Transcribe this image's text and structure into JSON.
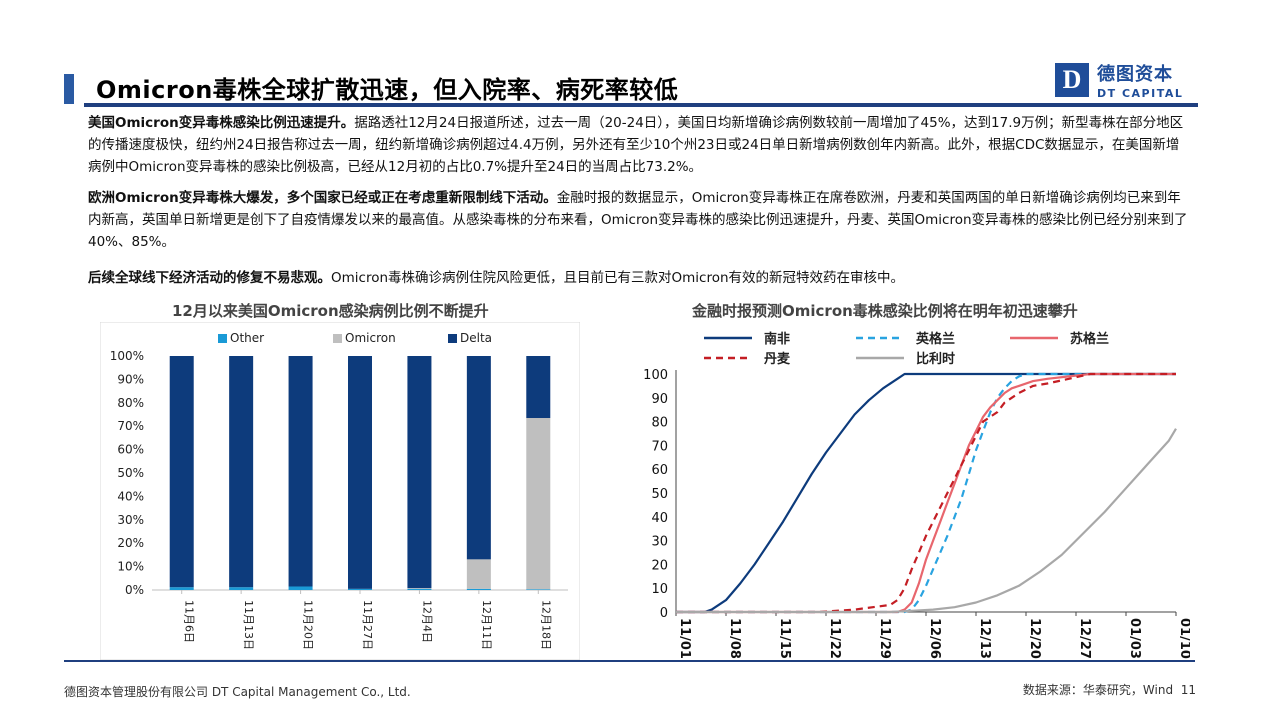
{
  "header": {
    "title": "Omicron毒株全球扩散迅速，但入院率、病死率较低",
    "logo_mark": "D",
    "logo_cn": "德图资本",
    "logo_en": "DT CAPITAL"
  },
  "paragraphs": [
    {
      "lead": "美国Omicron变异毒株感染比例迅速提升。",
      "text": "据路透社12月24日报道所述，过去一周（20-24日），美国日均新增确诊病例数较前一周增加了45%，达到17.9万例；新型毒株在部分地区的传播速度极快，纽约州24日报告称过去一周，纽约新增确诊病例超过4.4万例，另外还有至少10个州23日或24日单日新增病例数创年内新高。此外，根据CDC数据显示，在美国新增病例中Omicron变异毒株的感染比例极高，已经从12月初的占比0.7%提升至24日的当周占比73.2%。"
    },
    {
      "lead": "欧洲Omicron变异毒株大爆发，多个国家已经或正在考虑重新限制线下活动。",
      "text": "金融时报的数据显示，Omicron变异毒株正在席卷欧洲，丹麦和英国两国的单日新增确诊病例均已来到年内新高，英国单日新增更是创下了自疫情爆发以来的最高值。从感染毒株的分布来看，Omicron变异毒株的感染比例迅速提升，丹麦、英国Omicron变异毒株的感染比例已经分别来到了40%、85%。"
    },
    {
      "lead": "后续全球线下经济活动的修复不易悲观。",
      "text": "Omicron毒株确诊病例住院风险更低，且目前已有三款对Omicron有效的新冠特效药在审核中。"
    }
  ],
  "footer": {
    "company": "德图资本管理股份有限公司  DT Capital Management  Co., Ltd.",
    "source": "数据来源：华泰研究，Wind",
    "page": "11"
  },
  "chart_data": [
    {
      "type": "bar",
      "stacked": true,
      "title": "12月以来美国Omicron感染病例比例不断提升",
      "categories": [
        "11月6日",
        "11月13日",
        "11月20日",
        "11月27日",
        "12月4日",
        "12月11日",
        "12月18日"
      ],
      "series": [
        {
          "name": "Other",
          "color": "#1a9ad6",
          "values": [
            1.2,
            1.2,
            1.5,
            0.5,
            0.5,
            0.5,
            0.3
          ]
        },
        {
          "name": "Omicron",
          "color": "#bfbfbf",
          "values": [
            0,
            0,
            0,
            0,
            0.3,
            12.6,
            73.2
          ]
        },
        {
          "name": "Delta",
          "color": "#0d3b7c",
          "values": [
            98.8,
            98.8,
            98.5,
            99.5,
            99.2,
            86.9,
            26.5
          ]
        }
      ],
      "yticks": [
        "0%",
        "10%",
        "20%",
        "30%",
        "40%",
        "50%",
        "60%",
        "70%",
        "80%",
        "90%",
        "100%"
      ],
      "ylim": [
        0,
        100
      ],
      "legend": "top"
    },
    {
      "type": "line",
      "title": "金融时报预测Omicron毒株感染比例将在明年初迅速攀升",
      "x_ticks": [
        "11/01",
        "11/08",
        "11/15",
        "11/22",
        "11/29",
        "12/06",
        "12/13",
        "12/20",
        "12/27",
        "01/03",
        "01/10"
      ],
      "x_tick_days": [
        0,
        7,
        14,
        21,
        28,
        35,
        42,
        49,
        56,
        63,
        70
      ],
      "xlim_days": [
        0,
        70
      ],
      "ylim": [
        0,
        100
      ],
      "yticks": [
        0,
        10,
        20,
        30,
        40,
        50,
        60,
        70,
        80,
        90,
        100
      ],
      "legend": "top",
      "series": [
        {
          "name": "南非",
          "color": "#0d3b7c",
          "dash": "solid",
          "x": [
            0,
            4,
            5,
            7,
            9,
            11,
            13,
            15,
            17,
            19,
            21,
            23,
            25,
            27,
            29,
            31,
            32,
            70
          ],
          "y": [
            0,
            0,
            1,
            5,
            12,
            20,
            29,
            38,
            48,
            58,
            67,
            75,
            83,
            89,
            94,
            98,
            100,
            100
          ]
        },
        {
          "name": "英格兰",
          "color": "#29a3e0",
          "dash": "dash",
          "x": [
            0,
            32,
            33,
            34,
            35,
            36,
            37,
            38,
            39,
            40,
            41,
            42,
            43,
            44,
            45,
            46,
            47,
            48,
            49,
            50,
            51,
            52,
            70
          ],
          "y": [
            0,
            0,
            1,
            5,
            11,
            18,
            25,
            32,
            40,
            48,
            58,
            68,
            76,
            84,
            90,
            94,
            97,
            99,
            100,
            100,
            100,
            100,
            100
          ]
        },
        {
          "name": "苏格兰",
          "color": "#e8666d",
          "dash": "solid",
          "x": [
            0,
            31,
            32,
            33,
            34,
            35,
            36,
            37,
            38,
            39,
            40,
            41,
            42,
            43,
            44,
            45,
            46,
            47,
            48,
            50,
            52,
            55,
            58,
            62,
            70
          ],
          "y": [
            0,
            0,
            1,
            4,
            12,
            22,
            30,
            38,
            46,
            54,
            62,
            70,
            76,
            82,
            86,
            89,
            92,
            94,
            95,
            97,
            98,
            99,
            100,
            100,
            100
          ]
        },
        {
          "name": "丹麦",
          "color": "#c41e24",
          "dash": "dash",
          "x": [
            0,
            20,
            25,
            30,
            31,
            32,
            33,
            34,
            35,
            36,
            37,
            38,
            39,
            40,
            41,
            42,
            43,
            44,
            45,
            46,
            47,
            48,
            50,
            52,
            55,
            58,
            62,
            70
          ],
          "y": [
            0,
            0,
            1,
            3,
            5,
            10,
            18,
            25,
            32,
            38,
            44,
            50,
            56,
            62,
            68,
            74,
            80,
            82,
            84,
            88,
            90,
            92,
            95,
            96,
            98,
            100,
            100,
            100
          ]
        },
        {
          "name": "比利时",
          "color": "#a8a8a8",
          "dash": "solid",
          "x": [
            0,
            30,
            33,
            36,
            39,
            42,
            45,
            48,
            51,
            54,
            57,
            60,
            63,
            66,
            69,
            70
          ],
          "y": [
            0,
            0,
            0.5,
            1,
            2,
            4,
            7,
            11,
            17,
            24,
            33,
            42,
            52,
            62,
            72,
            77
          ]
        }
      ]
    }
  ]
}
